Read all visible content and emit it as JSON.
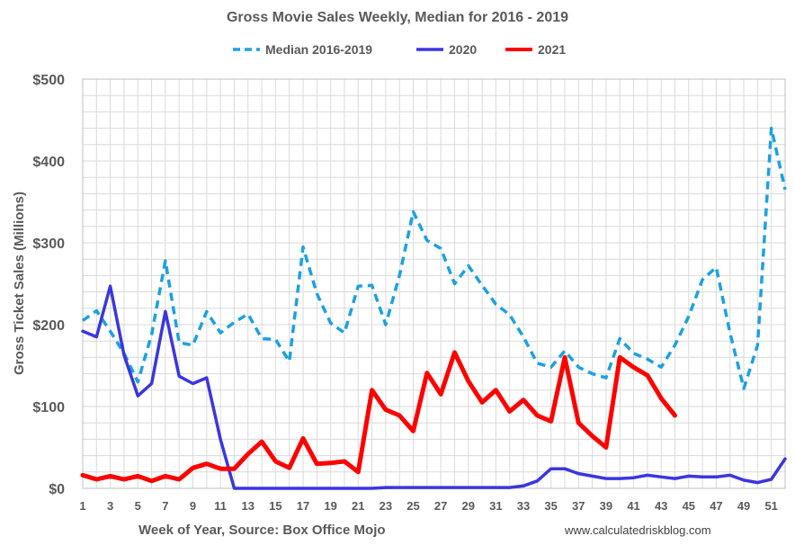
{
  "chart_data": {
    "type": "line",
    "title": "Gross Movie Sales Weekly, Median for 2016 - 2019",
    "xlabel": "Week of Year, Source: Box Office Mojo",
    "ylabel": "Gross Ticket Sales (Millions)",
    "source_note": "www.calculatedriskblog.com",
    "xlim": [
      1,
      52
    ],
    "ylim": [
      0,
      500
    ],
    "x_ticks": [
      1,
      3,
      5,
      7,
      9,
      11,
      13,
      15,
      17,
      19,
      21,
      23,
      25,
      27,
      29,
      31,
      33,
      35,
      37,
      39,
      41,
      43,
      45,
      47,
      49,
      51
    ],
    "y_ticks": [
      0,
      100,
      200,
      300,
      400,
      500
    ],
    "y_tick_labels": [
      "$0",
      "$100",
      "$200",
      "$300",
      "$400",
      "$500"
    ],
    "grid": true,
    "legend_position": "top-center",
    "series": [
      {
        "name": "Median 2016-2019",
        "color": "#1BA1E2",
        "style": "dashed",
        "x": [
          1,
          2,
          3,
          4,
          5,
          6,
          7,
          8,
          9,
          10,
          11,
          12,
          13,
          14,
          15,
          16,
          17,
          18,
          19,
          20,
          21,
          22,
          23,
          24,
          25,
          26,
          27,
          28,
          29,
          30,
          31,
          32,
          33,
          34,
          35,
          36,
          37,
          38,
          39,
          40,
          41,
          42,
          43,
          44,
          45,
          46,
          47,
          48,
          49,
          50,
          51,
          52
        ],
        "values": [
          205,
          217,
          192,
          165,
          130,
          188,
          278,
          178,
          175,
          216,
          190,
          203,
          213,
          183,
          182,
          155,
          295,
          238,
          202,
          190,
          247,
          248,
          200,
          260,
          338,
          303,
          293,
          250,
          272,
          248,
          225,
          212,
          185,
          153,
          148,
          168,
          148,
          140,
          135,
          183,
          165,
          158,
          148,
          175,
          210,
          255,
          270,
          190,
          122,
          175,
          440,
          365
        ]
      },
      {
        "name": "2020",
        "color": "#3A36E0",
        "style": "solid",
        "x": [
          1,
          2,
          3,
          4,
          5,
          6,
          7,
          8,
          9,
          10,
          11,
          12,
          13,
          14,
          15,
          16,
          17,
          18,
          19,
          20,
          21,
          22,
          23,
          24,
          25,
          26,
          27,
          28,
          29,
          30,
          31,
          32,
          33,
          34,
          35,
          36,
          37,
          38,
          39,
          40,
          41,
          42,
          43,
          44,
          45,
          46,
          47,
          48,
          49,
          50,
          51,
          52
        ],
        "values": [
          192,
          185,
          247,
          163,
          113,
          128,
          216,
          137,
          128,
          135,
          60,
          0,
          0,
          0,
          0,
          0,
          0,
          0,
          0,
          0,
          0,
          0,
          1,
          1,
          1,
          1,
          1,
          1,
          1,
          1,
          1,
          1,
          3,
          9,
          24,
          24,
          18,
          15,
          12,
          12,
          13,
          16,
          14,
          12,
          15,
          14,
          14,
          16,
          10,
          7,
          11,
          36
        ]
      },
      {
        "name": "2021",
        "color": "#FF0000",
        "style": "solid",
        "x": [
          1,
          2,
          3,
          4,
          5,
          6,
          7,
          8,
          9,
          10,
          11,
          12,
          13,
          14,
          15,
          16,
          17,
          18,
          19,
          20,
          21,
          22,
          23,
          24,
          25,
          26,
          27,
          28,
          29,
          30,
          31,
          32,
          33,
          34,
          35,
          36,
          37,
          38,
          39,
          40,
          41,
          42,
          43,
          44
        ],
        "values": [
          16,
          11,
          15,
          11,
          15,
          9,
          15,
          11,
          25,
          30,
          24,
          24,
          42,
          57,
          33,
          25,
          61,
          30,
          31,
          33,
          20,
          120,
          96,
          89,
          70,
          141,
          115,
          166,
          131,
          105,
          120,
          94,
          108,
          89,
          82,
          160,
          80,
          64,
          50,
          160,
          148,
          138,
          110,
          89
        ]
      }
    ]
  }
}
